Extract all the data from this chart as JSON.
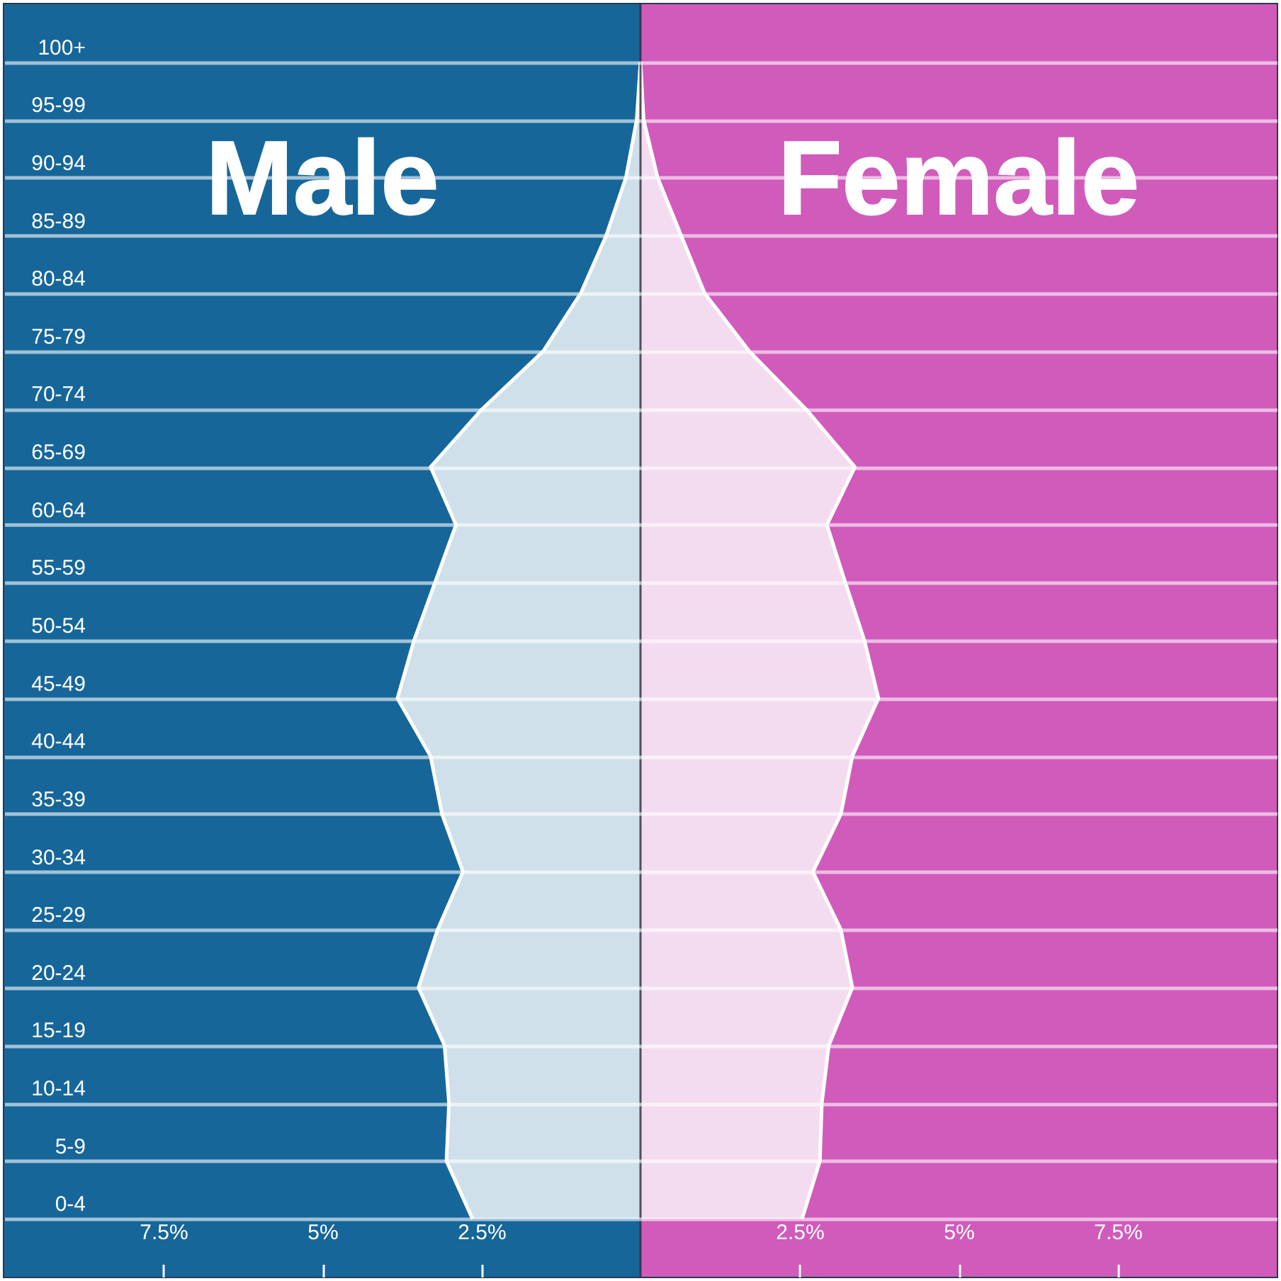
{
  "chart_data": {
    "type": "area",
    "orientation": "horizontal",
    "categories": [
      "100+",
      "95-99",
      "90-94",
      "85-89",
      "80-84",
      "75-79",
      "70-74",
      "65-69",
      "60-64",
      "55-59",
      "50-54",
      "45-49",
      "40-44",
      "35-39",
      "30-34",
      "25-29",
      "20-24",
      "15-19",
      "10-14",
      "5-9",
      "0-4"
    ],
    "series": [
      {
        "name": "Male",
        "color": "#cfe0ea",
        "values": [
          0,
          -0.06,
          -0.23,
          -0.54,
          -0.94,
          -1.53,
          -2.49,
          -3.3,
          -2.9,
          -3.23,
          -3.56,
          -3.82,
          -3.3,
          -3.12,
          -2.79,
          -3.19,
          -3.49,
          -3.08,
          -3.01,
          -3.05,
          -2.64
        ]
      },
      {
        "name": "Female",
        "color": "#f4dcf0",
        "values": [
          0,
          0.05,
          0.27,
          0.64,
          1.01,
          1.71,
          2.6,
          3.37,
          2.93,
          3.22,
          3.52,
          3.74,
          3.33,
          3.15,
          2.71,
          3.15,
          3.33,
          2.96,
          2.85,
          2.82,
          2.54
        ]
      }
    ],
    "xlim": [
      -10,
      10
    ],
    "xticks": [
      {
        "value": -7.5,
        "label": "7.5%"
      },
      {
        "value": -5,
        "label": "5%"
      },
      {
        "value": -2.5,
        "label": "2.5%"
      },
      {
        "value": 2.5,
        "label": "2.5%"
      },
      {
        "value": 5,
        "label": "5%"
      },
      {
        "value": 7.5,
        "label": "7.5%"
      }
    ],
    "bands": [
      {
        "axis": "x",
        "from": -10,
        "to": 0,
        "color": "#16669a"
      },
      {
        "axis": "x",
        "from": 0,
        "to": 10,
        "color": "#d05bbb"
      }
    ],
    "ref_lines": [
      {
        "axis": "x",
        "value": 0,
        "color": "#2a2a3a"
      }
    ],
    "grid": "y"
  }
}
